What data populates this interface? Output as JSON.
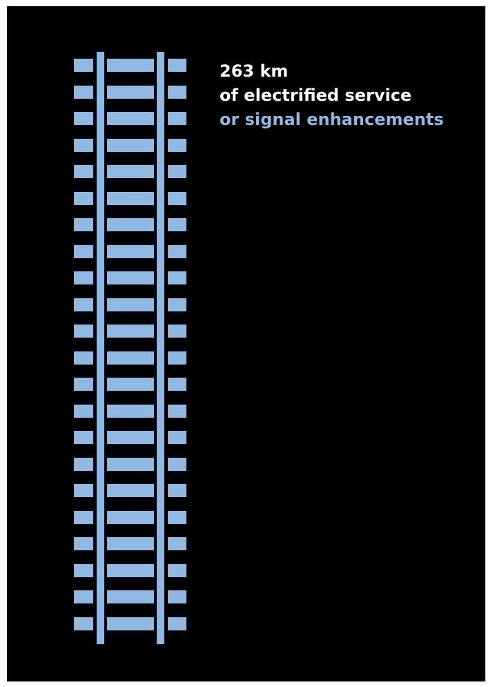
{
  "colors": {
    "background": "#000000",
    "track": "#8fb8e3",
    "text_primary": "#ffffff",
    "text_accent": "#8fb8e3"
  },
  "caption": {
    "line1": "263 km",
    "line2": "of electrified service",
    "line3": "or signal enhancements"
  },
  "illustration": {
    "icon": "railway-track-icon",
    "tie_count": 22
  }
}
